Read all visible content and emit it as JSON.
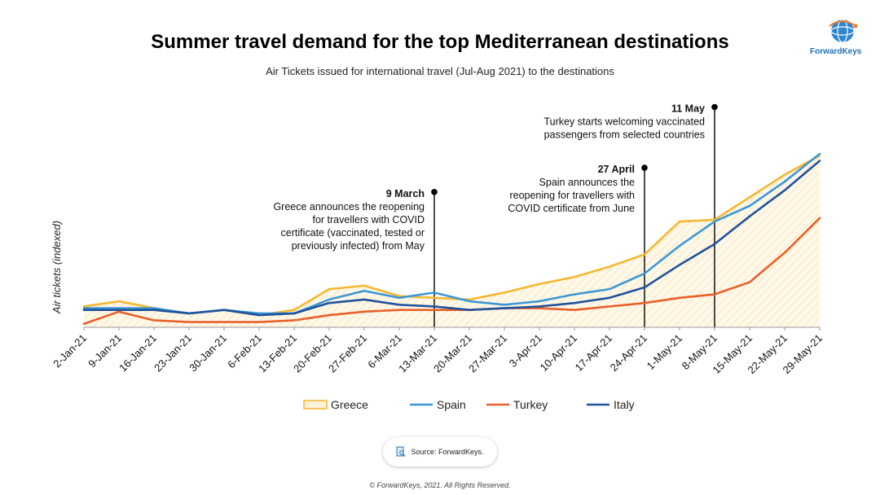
{
  "header": {
    "title": "Summer travel demand for the top Mediterranean destinations",
    "subtitle": "Air Tickets issued for international travel (Jul-Aug 2021) to the destinations",
    "logo_text": "ForwardKeys"
  },
  "source": {
    "label": "Source: ForwardKeys."
  },
  "footer": {
    "copyright": "© ForwardKeys, 2021. All Rights Reserved."
  },
  "colors": {
    "Greece": "#f5b731",
    "Spain": "#3b98d6",
    "Turkey": "#e8612c",
    "Italy": "#20539c"
  },
  "chart_data": {
    "type": "line",
    "title": "Summer travel demand for the top Mediterranean destinations",
    "subtitle": "Air Tickets issued for international travel (Jul-Aug 2021) to the destinations",
    "xlabel": "",
    "ylabel": "Air tickets (indexed)",
    "ylim": [
      0,
      100
    ],
    "grid": false,
    "legend": "bottom",
    "categories": [
      "2-Jan-21",
      "9-Jan-21",
      "16-Jan-21",
      "23-Jan-21",
      "30-Jan-21",
      "6-Feb-21",
      "13-Feb-21",
      "20-Feb-21",
      "27-Feb-21",
      "6-Mar-21",
      "13-Mar-21",
      "20-Mar-21",
      "27-Mar-21",
      "3-Apr-21",
      "10-Apr-21",
      "17-Apr-21",
      "24-Apr-21",
      "1-May-21",
      "8-May-21",
      "15-May-21",
      "22-May-21",
      "29-May-21"
    ],
    "series": [
      {
        "name": "Greece",
        "values": [
          12,
          15,
          11,
          8,
          10,
          7,
          10,
          22,
          24,
          18,
          17,
          16,
          20,
          25,
          29,
          35,
          42,
          61,
          62,
          75,
          88,
          99
        ]
      },
      {
        "name": "Spain",
        "values": [
          11,
          11,
          11,
          8,
          10,
          8,
          8,
          16,
          21,
          17,
          20,
          15,
          13,
          15,
          19,
          22,
          31,
          47,
          61,
          70,
          84,
          100
        ]
      },
      {
        "name": "Turkey",
        "values": [
          2,
          9,
          4,
          3,
          3,
          3,
          4,
          7,
          9,
          10,
          10,
          10,
          11,
          11,
          10,
          12,
          14,
          17,
          19,
          26,
          43,
          63
        ]
      },
      {
        "name": "Italy",
        "values": [
          10,
          10,
          10,
          8,
          10,
          7,
          8,
          14,
          16,
          13,
          12,
          10,
          11,
          12,
          14,
          17,
          23,
          36,
          48,
          64,
          79,
          96
        ]
      }
    ],
    "annotations": [
      {
        "x": "13-Mar-21",
        "level": 78,
        "title": "9 March",
        "lines": [
          "Greece announces the reopening",
          "for travellers with COVID",
          "certificate (vaccinated, tested or",
          "previously infected) from May"
        ]
      },
      {
        "x": "24-Apr-21",
        "level": 92,
        "title": "27 April",
        "lines": [
          "Spain announces the",
          "reopening for travellers with",
          "COVID certificate from June"
        ]
      },
      {
        "x": "8-May-21",
        "level": 127,
        "title": "11 May",
        "lines": [
          "Turkey starts welcoming vaccinated",
          "passengers from selected countries"
        ]
      }
    ]
  }
}
